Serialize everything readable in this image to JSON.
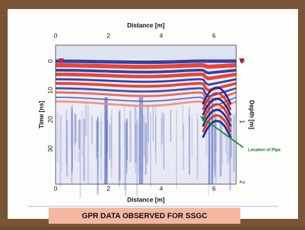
{
  "figure": {
    "top_axis": {
      "label": "Distance [m]",
      "ticks": [
        "0",
        "2",
        "4",
        "6"
      ]
    },
    "bottom_axis": {
      "label": "Distance [m]",
      "ticks": [
        "0",
        "2",
        "4",
        "6"
      ]
    },
    "left_axis": {
      "label": "Time [ns]",
      "ticks": [
        "0",
        "10",
        "20",
        "30"
      ]
    },
    "right_axis": {
      "label": "Depth [m]",
      "ticks": [
        "0",
        "1",
        "2"
      ]
    },
    "annotation": "Location of Pipe"
  },
  "caption": "GPR DATA OBSERVED FOR SSGC"
}
